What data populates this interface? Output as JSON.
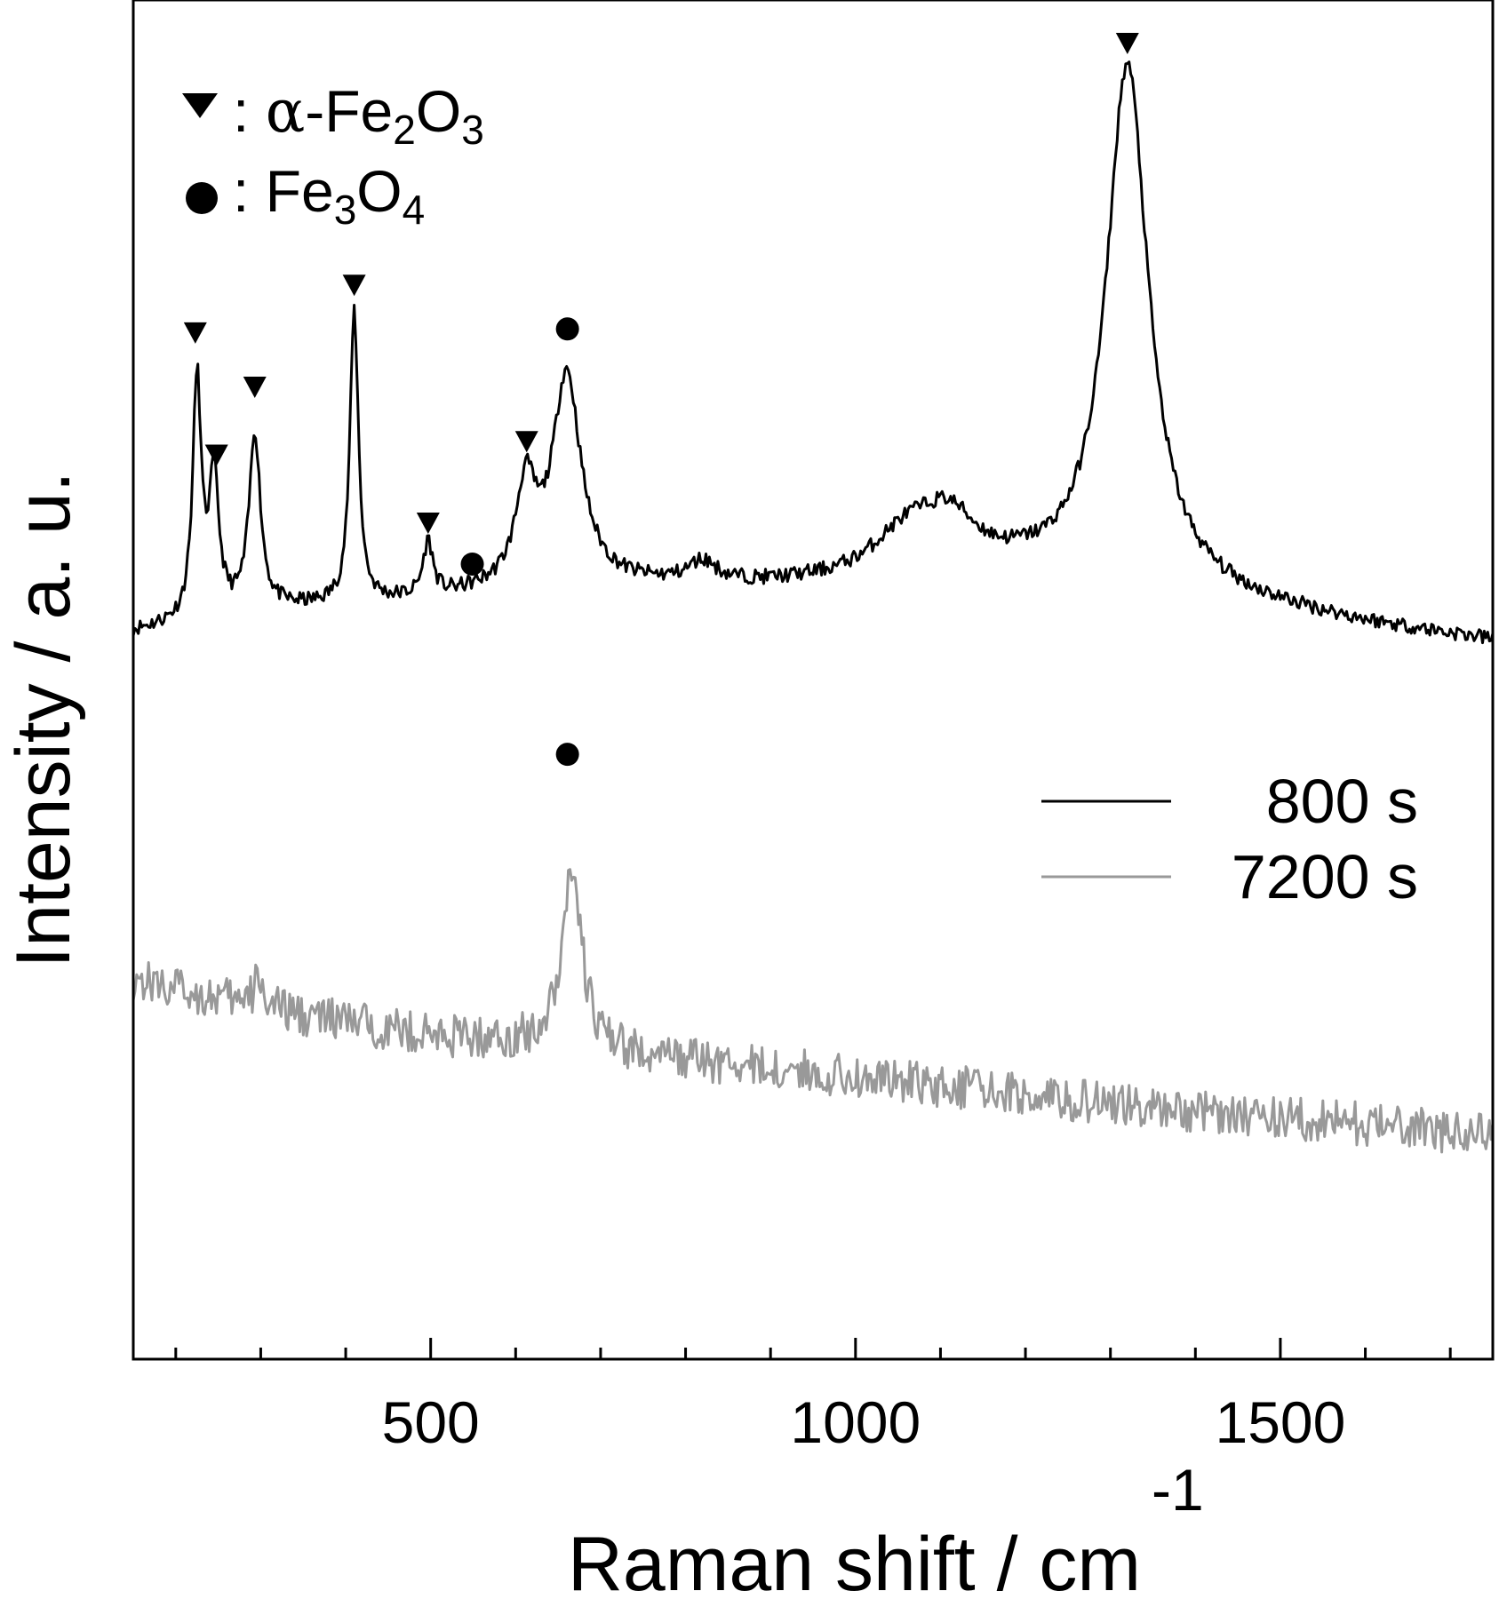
{
  "chart_data": {
    "type": "line",
    "xlabel": "Raman shift / cm",
    "xlabel_superscript": "-1",
    "ylabel": "Intensity / a. u.",
    "xlim": [
      150,
      1750
    ],
    "ylim": [
      0,
      100
    ],
    "y_ticks_shown": false,
    "grid": false,
    "x_major_ticks": [
      500,
      1000,
      1500
    ],
    "x_minor_ticks": [
      200,
      300,
      400,
      600,
      700,
      800,
      900,
      1100,
      1200,
      1300,
      1400,
      1600,
      1700
    ],
    "legend": {
      "placement": "middle-right",
      "entries": [
        {
          "label": "800 s",
          "color": "#000000"
        },
        {
          "label": "7200 s",
          "color": "#999999"
        }
      ]
    },
    "marker_key": [
      {
        "symbol": "triangle-down",
        "label": "α-Fe₂O₃"
      },
      {
        "symbol": "circle",
        "label": "Fe₃O₄"
      }
    ],
    "series": [
      {
        "name": "800 s",
        "color": "#000000",
        "baseline_x": [
          150,
          300,
          500,
          600,
          700,
          900,
          1000,
          1100,
          1200,
          1400,
          1600,
          1750
        ],
        "baseline_y": [
          53.5,
          55.0,
          55.8,
          56.5,
          56.8,
          56.8,
          57.0,
          57.5,
          57.5,
          56.0,
          54.0,
          52.8
        ],
        "peaks": [
          {
            "x": 225,
            "height": 17.5,
            "width": 6
          },
          {
            "x": 245,
            "height": 10.0,
            "width": 7
          },
          {
            "x": 293,
            "height": 13.0,
            "width": 8
          },
          {
            "x": 410,
            "height": 21.5,
            "width": 6
          },
          {
            "x": 497,
            "height": 4.0,
            "width": 7
          },
          {
            "x": 612,
            "height": 7.0,
            "width": 14
          },
          {
            "x": 660,
            "height": 15.5,
            "width": 20
          },
          {
            "x": 820,
            "height": 1.5,
            "width": 20
          },
          {
            "x": 1060,
            "height": 3.0,
            "width": 50
          },
          {
            "x": 1110,
            "height": 3.5,
            "width": 40
          },
          {
            "x": 1320,
            "height": 38.5,
            "width": 30
          }
        ],
        "noise": 0.55
      },
      {
        "name": "7200 s",
        "color": "#999999",
        "baseline_x": [
          150,
          300,
          500,
          640,
          700,
          1000,
          1300,
          1500,
          1750
        ],
        "baseline_y": [
          28.0,
          25.8,
          23.8,
          23.0,
          22.5,
          20.8,
          18.8,
          17.8,
          16.5
        ],
        "peaks": [
          {
            "x": 298,
            "height": 2.5,
            "width": 6
          },
          {
            "x": 666,
            "height": 13.5,
            "width": 14
          }
        ],
        "noise": 1.6
      }
    ],
    "annotations": [
      {
        "symbol": "triangle-down",
        "x": 223,
        "y": 75.5
      },
      {
        "symbol": "triangle-down",
        "x": 248,
        "y": 66.5
      },
      {
        "symbol": "triangle-down",
        "x": 293,
        "y": 71.5
      },
      {
        "symbol": "triangle-down",
        "x": 410,
        "y": 79.0
      },
      {
        "symbol": "triangle-down",
        "x": 497,
        "y": 61.5
      },
      {
        "symbol": "triangle-down",
        "x": 613,
        "y": 67.5
      },
      {
        "symbol": "circle",
        "x": 549,
        "y": 58.5
      },
      {
        "symbol": "circle",
        "x": 661,
        "y": 75.8
      },
      {
        "symbol": "triangle-down",
        "x": 1320,
        "y": 96.8
      },
      {
        "symbol": "circle",
        "x": 661,
        "y": 44.5
      }
    ]
  }
}
